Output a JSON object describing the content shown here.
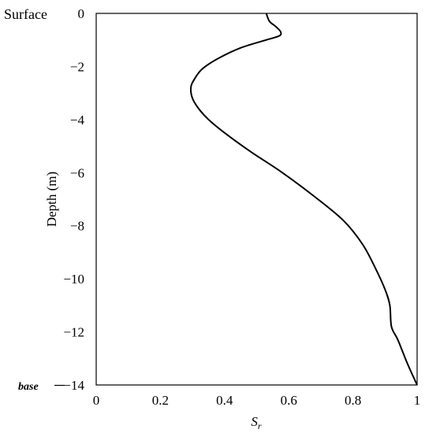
{
  "chart_data": {
    "type": "line",
    "title": "",
    "xlabel": "S",
    "xlabel_subscript": "r",
    "ylabel": "Depth (m)",
    "xlim": [
      0,
      1
    ],
    "ylim": [
      -14,
      0
    ],
    "grid": false,
    "x_ticks": [
      {
        "value": 0,
        "label": "0"
      },
      {
        "value": 0.2,
        "label": "0.2"
      },
      {
        "value": 0.4,
        "label": "0.4"
      },
      {
        "value": 0.6,
        "label": "0.6"
      },
      {
        "value": 0.8,
        "label": "0.8"
      },
      {
        "value": 1,
        "label": "1"
      }
    ],
    "y_ticks": [
      {
        "value": 0,
        "label": "0"
      },
      {
        "value": -2,
        "label": "−2"
      },
      {
        "value": -4,
        "label": "−4"
      },
      {
        "value": -6,
        "label": "−6"
      },
      {
        "value": -8,
        "label": "−8"
      },
      {
        "value": -10,
        "label": "−10"
      },
      {
        "value": -12,
        "label": "−12"
      },
      {
        "value": -14,
        "label": "−14"
      }
    ],
    "annotations": {
      "surface": "Surface",
      "base": "base"
    },
    "series": [
      {
        "color": "#000000",
        "x": [
          0.53,
          0.54,
          0.56,
          0.575,
          0.57,
          0.53,
          0.45,
          0.38,
          0.33,
          0.305,
          0.295,
          0.3,
          0.32,
          0.35,
          0.4,
          0.48,
          0.58,
          0.68,
          0.77,
          0.83,
          0.87,
          0.9,
          0.915,
          0.92,
          0.94,
          0.97,
          1.0
        ],
        "y": [
          0,
          -0.3,
          -0.5,
          -0.7,
          -0.85,
          -1.0,
          -1.3,
          -1.7,
          -2.1,
          -2.5,
          -2.8,
          -3.2,
          -3.6,
          -4.0,
          -4.5,
          -5.2,
          -6.0,
          -6.9,
          -7.8,
          -8.7,
          -9.6,
          -10.4,
          -11.0,
          -11.8,
          -12.3,
          -13.2,
          -14.0
        ]
      }
    ]
  }
}
